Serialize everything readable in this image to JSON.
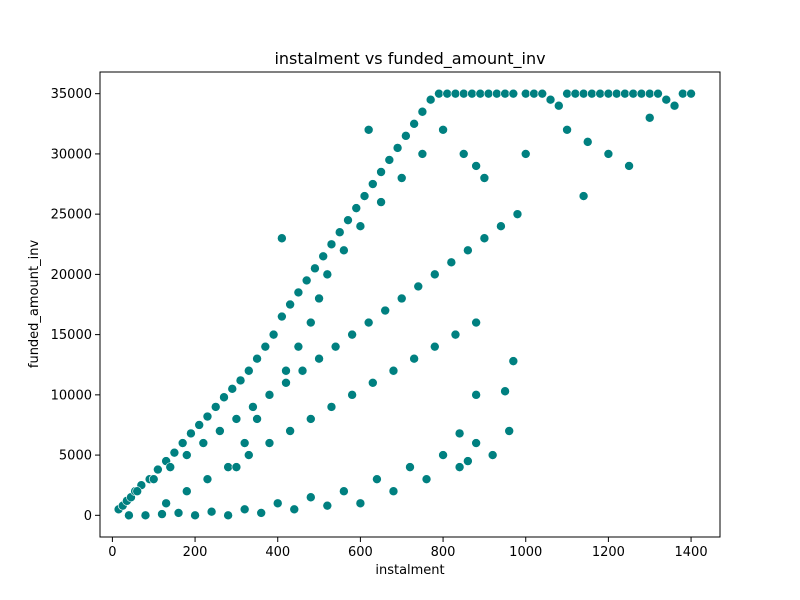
{
  "chart_data": {
    "type": "scatter",
    "title": "instalment vs funded_amount_inv",
    "xlabel": "instalment",
    "ylabel": "funded_amount_inv",
    "xlim": [
      -30,
      1470
    ],
    "ylim": [
      -1800,
      36800
    ],
    "x_ticks": [
      0,
      200,
      400,
      600,
      800,
      1000,
      1200,
      1400
    ],
    "y_ticks": [
      0,
      5000,
      10000,
      15000,
      20000,
      25000,
      30000,
      35000
    ],
    "grid": false,
    "legend": "none",
    "marker_color": "#008080",
    "marker_edge_color": "#ffffff",
    "series": [
      {
        "x": [
          15,
          25,
          35,
          45,
          55,
          70,
          90,
          110,
          130,
          150,
          170,
          190,
          210,
          230,
          250,
          270,
          290,
          310,
          330,
          350,
          370,
          390,
          410,
          430,
          450,
          470,
          490,
          510,
          530,
          550,
          570,
          590,
          610,
          630,
          650,
          670,
          690,
          710,
          730,
          750,
          770,
          790,
          810,
          830,
          850,
          870,
          890,
          910,
          930,
          950,
          970,
          1000,
          1020,
          1040,
          1060,
          1080,
          1100,
          1120,
          1140,
          1160,
          1180,
          1200,
          1220,
          1240,
          1260,
          1280,
          1300,
          1320,
          1340,
          1360,
          1380,
          1400,
          40,
          80,
          120,
          160,
          200,
          240,
          280,
          320,
          360,
          400,
          440,
          480,
          520,
          560,
          600,
          640,
          680,
          720,
          760,
          800,
          840,
          880,
          920,
          960,
          60,
          100,
          140,
          180,
          220,
          260,
          300,
          340,
          380,
          420,
          460,
          500,
          540,
          580,
          620,
          660,
          700,
          740,
          780,
          820,
          860,
          900,
          940,
          980,
          130,
          180,
          230,
          280,
          330,
          380,
          430,
          480,
          530,
          580,
          630,
          680,
          730,
          780,
          830,
          880,
          300,
          320,
          350,
          380,
          420,
          450,
          480,
          500,
          520,
          560,
          600,
          650,
          700,
          750,
          800,
          850,
          880,
          900,
          1000,
          1100,
          1150,
          1200,
          1250,
          1300,
          410,
          620,
          1140,
          970,
          950,
          880,
          860,
          840
        ],
        "y": [
          500,
          800,
          1200,
          1500,
          2000,
          2500,
          3000,
          3800,
          4500,
          5200,
          6000,
          6800,
          7500,
          8200,
          9000,
          9800,
          10500,
          11200,
          12000,
          13000,
          14000,
          15000,
          16500,
          17500,
          18500,
          19500,
          20500,
          21500,
          22500,
          23500,
          24500,
          25500,
          26500,
          27500,
          28500,
          29500,
          30500,
          31500,
          32500,
          33500,
          34500,
          35000,
          35000,
          35000,
          35000,
          35000,
          35000,
          35000,
          35000,
          35000,
          35000,
          35000,
          35000,
          35000,
          34500,
          34000,
          35000,
          35000,
          35000,
          35000,
          35000,
          35000,
          35000,
          35000,
          35000,
          35000,
          35000,
          35000,
          34500,
          34000,
          35000,
          35000,
          0,
          0,
          100,
          200,
          0,
          300,
          0,
          500,
          200,
          1000,
          500,
          1500,
          800,
          2000,
          1000,
          3000,
          2000,
          4000,
          3000,
          5000,
          4000,
          6000,
          5000,
          7000,
          2000,
          3000,
          4000,
          5000,
          6000,
          7000,
          8000,
          9000,
          10000,
          11000,
          12000,
          13000,
          14000,
          15000,
          16000,
          17000,
          18000,
          19000,
          20000,
          21000,
          22000,
          23000,
          24000,
          25000,
          1000,
          2000,
          3000,
          4000,
          5000,
          6000,
          7000,
          8000,
          9000,
          10000,
          11000,
          12000,
          13000,
          14000,
          15000,
          16000,
          4000,
          6000,
          8000,
          10000,
          12000,
          14000,
          16000,
          18000,
          20000,
          22000,
          24000,
          26000,
          28000,
          30000,
          32000,
          30000,
          29000,
          28000,
          30000,
          32000,
          31000,
          30000,
          29000,
          33000,
          23000,
          32000,
          26500,
          12800,
          10300,
          10000,
          4500,
          6800
        ]
      }
    ]
  }
}
